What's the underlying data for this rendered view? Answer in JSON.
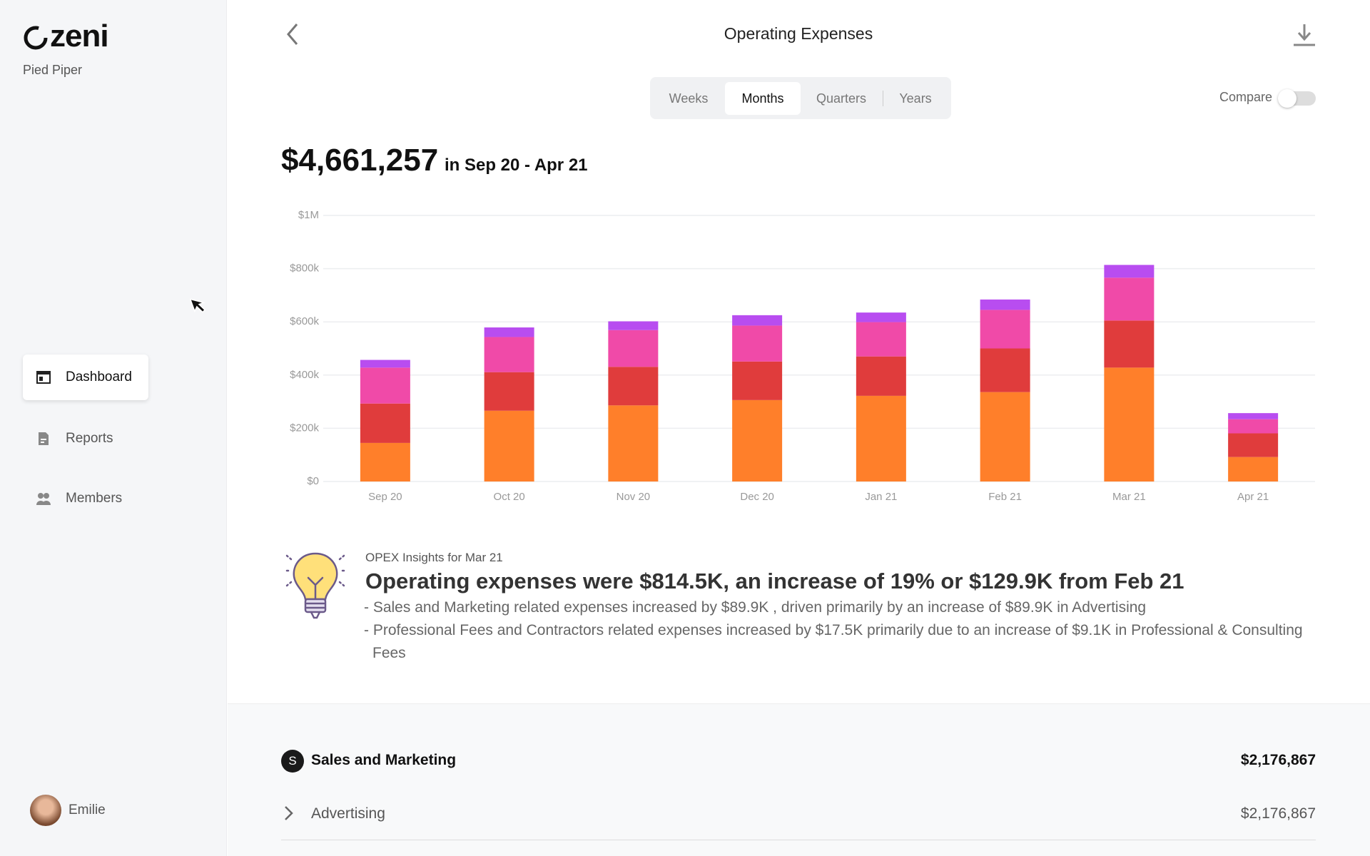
{
  "sidebar": {
    "logo": "zeni",
    "company": "Pied Piper",
    "nav": [
      "Dashboard",
      "Reports",
      "Members"
    ],
    "active_nav": 0,
    "user": "Emilie"
  },
  "header": {
    "title": "Operating Expenses",
    "periods": [
      "Weeks",
      "Months",
      "Quarters",
      "Years"
    ],
    "selected_period": 1,
    "compare": "Compare"
  },
  "summary": {
    "total": "$4,661,257",
    "range": "in Sep 20 - Apr 21"
  },
  "chart_data": {
    "type": "bar",
    "stacked": true,
    "grid": true,
    "categories": [
      "Sep 20",
      "Oct 20",
      "Nov 20",
      "Dec 20",
      "Jan 21",
      "Feb 21",
      "Mar 21",
      "Apr 21"
    ],
    "series": [
      {
        "color": "#ff7f2a",
        "values": [
          145000,
          266000,
          286000,
          306000,
          322000,
          336000,
          428000,
          92000
        ]
      },
      {
        "color": "#e03c3c",
        "values": [
          148000,
          145000,
          145000,
          145000,
          148000,
          164000,
          177000,
          89000
        ]
      },
      {
        "color": "#f04aa8",
        "values": [
          135000,
          132000,
          138000,
          135000,
          129000,
          145000,
          161000,
          53000
        ]
      },
      {
        "color": "#b84df0",
        "values": [
          29000,
          36000,
          33000,
          39000,
          36000,
          39000,
          48000,
          23000
        ]
      }
    ],
    "ylim": [
      0,
      1000000
    ],
    "yticks": [
      {
        "value": 0,
        "label": "$0"
      },
      {
        "value": 200000,
        "label": "$200k"
      },
      {
        "value": 400000,
        "label": "$400k"
      },
      {
        "value": 600000,
        "label": "$600k"
      },
      {
        "value": 800000,
        "label": "$800k"
      },
      {
        "value": 1000000,
        "label": "$1M"
      }
    ]
  },
  "insights": {
    "label": "OPEX Insights for Mar 21",
    "headline": "Operating expenses were $814.5K, an increase of 19% or $129.9K from Feb 21",
    "bullets": [
      "- Sales and Marketing related expenses increased by $89.9K , driven primarily by an increase of $89.9K in Advertising",
      "- Professional Fees and Contractors related expenses increased by $17.5K primarily due to an increase of $9.1K in Professional & Consulting Fees"
    ]
  },
  "table": {
    "section": {
      "badge": "S",
      "name": "Sales and Marketing",
      "amount": "$2,176,867"
    },
    "rows": [
      {
        "name": "Advertising",
        "amount": "$2,176,867"
      }
    ]
  }
}
